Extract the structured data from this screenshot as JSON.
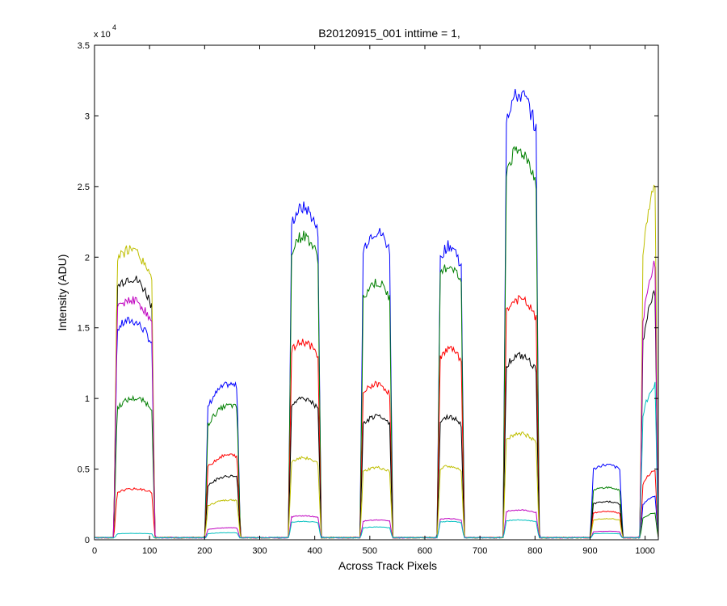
{
  "chart_data": {
    "type": "line",
    "title": "B20120915_001 inttime = 1,",
    "xlabel": "Across Track Pixels",
    "ylabel": "Intensity (ADU)",
    "y_multiplier_label": {
      "base": "x 10",
      "exponent": "4"
    },
    "xlim": [
      0,
      1024
    ],
    "ylim": [
      0,
      35000
    ],
    "x_ticks": [
      0,
      100,
      200,
      300,
      400,
      500,
      600,
      700,
      800,
      900,
      1000
    ],
    "x_tick_labels": [
      "0",
      "100",
      "200",
      "300",
      "400",
      "500",
      "600",
      "700",
      "800",
      "900",
      "1000"
    ],
    "y_ticks": [
      0,
      5000,
      10000,
      15000,
      20000,
      25000,
      30000,
      35000
    ],
    "y_tick_labels": [
      "0",
      "0.5",
      "1",
      "1.5",
      "2",
      "2.5",
      "3",
      "3.5"
    ],
    "grid": false,
    "baseline": 150,
    "segments": [
      {
        "x_start": 35,
        "x_end": 110
      },
      {
        "x_start": 200,
        "x_end": 265
      },
      {
        "x_start": 352,
        "x_end": 412
      },
      {
        "x_start": 482,
        "x_end": 542
      },
      {
        "x_start": 622,
        "x_end": 672
      },
      {
        "x_start": 742,
        "x_end": 808
      },
      {
        "x_start": 900,
        "x_end": 960
      },
      {
        "x_start": 990,
        "x_end": 1024
      }
    ],
    "series": [
      {
        "color": "#0000ff",
        "values": [
          15500,
          11000,
          23500,
          21800,
          20800,
          31500,
          5300,
          3100
        ],
        "peaks": [
          0.4,
          0.7,
          0.45,
          0.5,
          0.45,
          0.45,
          0.5,
          0.9
        ]
      },
      {
        "color": "#007f00",
        "values": [
          10000,
          9500,
          21500,
          18200,
          19400,
          27500,
          3700,
          1900
        ],
        "peaks": [
          0.5,
          0.7,
          0.45,
          0.5,
          0.45,
          0.45,
          0.5,
          0.9
        ]
      },
      {
        "color": "#ff0000",
        "values": [
          3600,
          6000,
          14000,
          11000,
          13500,
          17000,
          2000,
          4900
        ],
        "peaks": [
          0.5,
          0.7,
          0.45,
          0.5,
          0.45,
          0.45,
          0.5,
          0.9
        ]
      },
      {
        "color": "#000000",
        "values": [
          18500,
          4500,
          10000,
          8700,
          8700,
          13000,
          2700,
          17500
        ],
        "peaks": [
          0.4,
          0.7,
          0.45,
          0.5,
          0.45,
          0.45,
          0.5,
          0.9
        ]
      },
      {
        "color": "#bfbf00",
        "values": [
          20500,
          2800,
          5800,
          5100,
          5200,
          7500,
          1500,
          25000
        ],
        "peaks": [
          0.4,
          0.7,
          0.45,
          0.5,
          0.45,
          0.45,
          0.5,
          0.9
        ]
      },
      {
        "color": "#bf00bf",
        "values": [
          17000,
          850,
          1700,
          1400,
          1500,
          2100,
          600,
          19500
        ],
        "peaks": [
          0.4,
          0.7,
          0.45,
          0.5,
          0.45,
          0.45,
          0.5,
          0.9
        ]
      },
      {
        "color": "#00bfbf",
        "values": [
          450,
          500,
          1300,
          900,
          1300,
          1400,
          450,
          11000
        ],
        "peaks": [
          0.5,
          0.7,
          0.45,
          0.5,
          0.45,
          0.45,
          0.5,
          0.9
        ]
      }
    ]
  }
}
